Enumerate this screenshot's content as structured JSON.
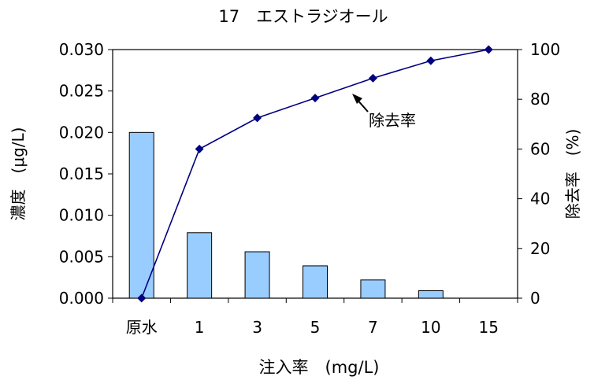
{
  "chart_data": {
    "type": "bar+line",
    "title": "17　エストラジオール",
    "xlabel": "注入率　(mg/L)",
    "ylabel_left": "濃度　(μg/L)",
    "ylabel_right": "除去率　(%)",
    "categories": [
      "原水",
      "1",
      "3",
      "5",
      "7",
      "10",
      "15"
    ],
    "ylim_left": [
      0,
      0.03
    ],
    "yticks_left": [
      "0.000",
      "0.005",
      "0.010",
      "0.015",
      "0.020",
      "0.025",
      "0.030"
    ],
    "ylim_right": [
      0,
      100
    ],
    "yticks_right": [
      "0",
      "20",
      "40",
      "60",
      "80",
      "100"
    ],
    "series": [
      {
        "kind": "bar",
        "axis": "left",
        "values": [
          0.02,
          0.0079,
          0.0056,
          0.0039,
          0.0022,
          0.0009,
          0.0
        ]
      },
      {
        "kind": "line",
        "axis": "right",
        "name": "除去率",
        "values": [
          0,
          60,
          72.5,
          80.5,
          88.5,
          95.5,
          100
        ]
      }
    ],
    "annotation": "除去率",
    "colors": {
      "bar_fill": "#99ccff",
      "bar_stroke": "#000000",
      "line": "#000080",
      "marker": "#000080"
    },
    "grid": false
  }
}
